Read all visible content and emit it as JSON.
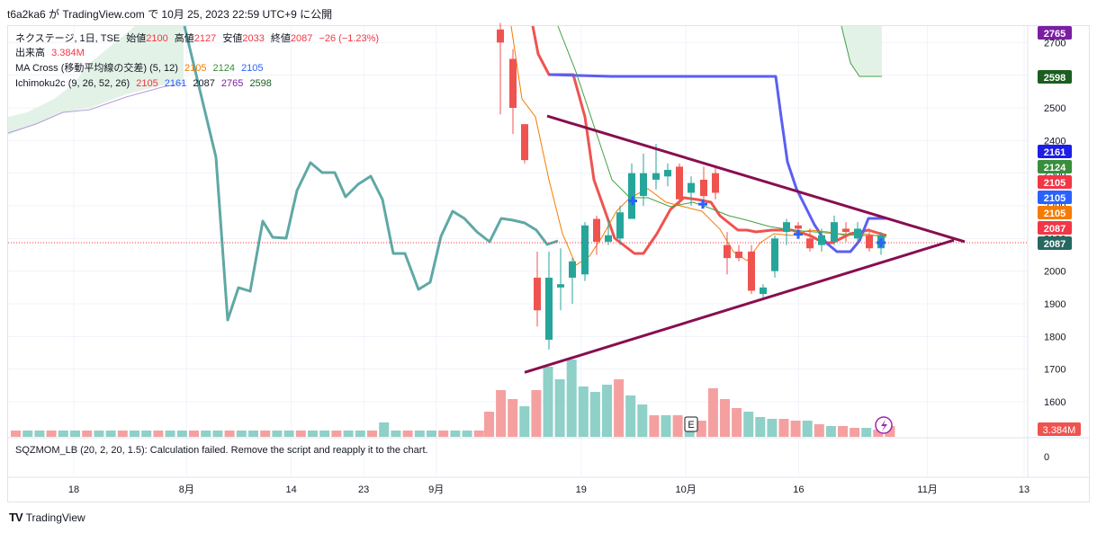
{
  "caption": "t6a2ka6 が TradingView.com で 10月 25, 2023 22:59 UTC+9 に公開",
  "legend": {
    "symbol": "ネクステージ, 1日, TSE",
    "open_label": "始値",
    "open": "2100",
    "high_label": "高値",
    "high": "2127",
    "low_label": "安値",
    "low": "2033",
    "close_label": "終値",
    "close": "2087",
    "change": "−26 (−1.23%)",
    "volume_label": "出来高",
    "volume": "3.384M",
    "ma_label": "MA Cross (移動平均線の交差) (5, 12)",
    "ma_fast": "2105",
    "ma_slow": "2124",
    "ma_third": "2105",
    "ichi_label": "Ichimoku2c (9, 26, 52, 26)",
    "ichi_v1": "2105",
    "ichi_v2": "2161",
    "ichi_v3": "2087",
    "ichi_v4": "2765",
    "ichi_v5": "2598"
  },
  "sqz": {
    "label": "SQZMOM_LB (20, 2, 20, 1.5): Calculation failed. Remove the script and reapply it to the chart.",
    "zero": "0"
  },
  "footer": {
    "logo_mark": "TV",
    "logo_text": "TradingView"
  },
  "colors": {
    "up": "#26a69a",
    "down": "#ef5350",
    "vol_up": "#8fd0c8",
    "vol_down": "#f5a0a0",
    "lagging": "#5fa8a5",
    "conversion": "#ef5350",
    "base": "#5b5ff2",
    "ma_fast": "#f57c00",
    "ma_slow": "#43a047",
    "cloud": "#e3f2e6",
    "triangle": "#880e4f"
  },
  "chart_data": {
    "type": "candlestick",
    "symbol": "ネクステージ",
    "timeframe": "1日",
    "exchange": "TSE",
    "y_ticks": [
      1600,
      1700,
      1800,
      1900,
      2000,
      2100,
      2200,
      2300,
      2400,
      2500,
      2600,
      2700
    ],
    "ylim": [
      1500,
      2730
    ],
    "x_tick_labels": [
      "18",
      "8月",
      "14",
      "23",
      "9月",
      "19",
      "10月",
      "16",
      "11月",
      "13"
    ],
    "x_tick_dates": [
      "2023-07-18",
      "2023-08-01",
      "2023-08-14",
      "2023-08-23",
      "2023-09-01",
      "2023-09-19",
      "2023-10-02",
      "2023-10-16",
      "2023-11-01",
      "2023-11-13"
    ],
    "last_close": 2087,
    "price_badges": [
      {
        "value": "2765",
        "bg": "#7b1fa2"
      },
      {
        "value": "2598",
        "bg": "#1b5e20"
      },
      {
        "value": "2161",
        "bg": "#1e1ee6"
      },
      {
        "value": "2124",
        "bg": "#388e3c"
      },
      {
        "value": "2105",
        "bg": "#f23645"
      },
      {
        "value": "2105",
        "bg": "#2962ff"
      },
      {
        "value": "2105",
        "bg": "#f57c00"
      },
      {
        "value": "2087",
        "bg": "#f23645"
      },
      {
        "value": "2087",
        "bg": "#26685f"
      }
    ],
    "volume_badge": "3.384M",
    "earnings_marker": "E",
    "candles": [
      {
        "d": "2023-09-06",
        "o": 2740,
        "h": 2760,
        "l": 2480,
        "c": 2700
      },
      {
        "d": "2023-09-07",
        "o": 2650,
        "h": 2680,
        "l": 2420,
        "c": 2500
      },
      {
        "d": "2023-09-08",
        "o": 2450,
        "h": 2450,
        "l": 2330,
        "c": 2340
      },
      {
        "d": "2023-09-11",
        "o": 1980,
        "h": 2060,
        "l": 1830,
        "c": 1880
      },
      {
        "d": "2023-09-12",
        "o": 1790,
        "h": 2060,
        "l": 1760,
        "c": 1980
      },
      {
        "d": "2023-09-13",
        "o": 1950,
        "h": 2070,
        "l": 1880,
        "c": 1960
      },
      {
        "d": "2023-09-14",
        "o": 1980,
        "h": 2040,
        "l": 1900,
        "c": 2030
      },
      {
        "d": "2023-09-15",
        "o": 1990,
        "h": 2150,
        "l": 1970,
        "c": 2140
      },
      {
        "d": "2023-09-19",
        "o": 2160,
        "h": 2170,
        "l": 2050,
        "c": 2090
      },
      {
        "d": "2023-09-20",
        "o": 2090,
        "h": 2160,
        "l": 2080,
        "c": 2110
      },
      {
        "d": "2023-09-21",
        "o": 2100,
        "h": 2200,
        "l": 2080,
        "c": 2180
      },
      {
        "d": "2023-09-22",
        "o": 2160,
        "h": 2330,
        "l": 2160,
        "c": 2300
      },
      {
        "d": "2023-09-25",
        "o": 2230,
        "h": 2360,
        "l": 2200,
        "c": 2300
      },
      {
        "d": "2023-09-26",
        "o": 2280,
        "h": 2390,
        "l": 2250,
        "c": 2300
      },
      {
        "d": "2023-09-27",
        "o": 2290,
        "h": 2330,
        "l": 2260,
        "c": 2310
      },
      {
        "d": "2023-09-28",
        "o": 2320,
        "h": 2330,
        "l": 2200,
        "c": 2220
      },
      {
        "d": "2023-09-29",
        "o": 2240,
        "h": 2290,
        "l": 2200,
        "c": 2270
      },
      {
        "d": "2023-10-02",
        "o": 2280,
        "h": 2320,
        "l": 2200,
        "c": 2230
      },
      {
        "d": "2023-10-03",
        "o": 2300,
        "h": 2320,
        "l": 2220,
        "c": 2240
      },
      {
        "d": "2023-10-04",
        "o": 2080,
        "h": 2120,
        "l": 1990,
        "c": 2040
      },
      {
        "d": "2023-10-05",
        "o": 2060,
        "h": 2080,
        "l": 2030,
        "c": 2040
      },
      {
        "d": "2023-10-06",
        "o": 2060,
        "h": 2080,
        "l": 1930,
        "c": 1940
      },
      {
        "d": "2023-10-10",
        "o": 1930,
        "h": 1960,
        "l": 1920,
        "c": 1950
      },
      {
        "d": "2023-10-11",
        "o": 2000,
        "h": 2110,
        "l": 1980,
        "c": 2100
      },
      {
        "d": "2023-10-12",
        "o": 2120,
        "h": 2160,
        "l": 2080,
        "c": 2150
      },
      {
        "d": "2023-10-13",
        "o": 2140,
        "h": 2150,
        "l": 2110,
        "c": 2130
      },
      {
        "d": "2023-10-16",
        "o": 2100,
        "h": 2130,
        "l": 2060,
        "c": 2070
      },
      {
        "d": "2023-10-17",
        "o": 2080,
        "h": 2130,
        "l": 2060,
        "c": 2110
      },
      {
        "d": "2023-10-18",
        "o": 2090,
        "h": 2170,
        "l": 2080,
        "c": 2150
      },
      {
        "d": "2023-10-19",
        "o": 2130,
        "h": 2150,
        "l": 2090,
        "c": 2120
      },
      {
        "d": "2023-10-20",
        "o": 2100,
        "h": 2150,
        "l": 2090,
        "c": 2130
      },
      {
        "d": "2023-10-23",
        "o": 2110,
        "h": 2130,
        "l": 2060,
        "c": 2070
      },
      {
        "d": "2023-10-24",
        "o": 2070,
        "h": 2120,
        "l": 2050,
        "c": 2110
      },
      {
        "d": "2023-10-25",
        "o": 2100,
        "h": 2127,
        "l": 2033,
        "c": 2087
      }
    ],
    "volume": {
      "label": "出来高",
      "values": [
        0.5,
        0.45,
        0.45,
        0.5,
        0.45,
        1.0,
        0.5,
        0.5,
        0.5,
        0.45,
        0.5,
        0.45,
        3.7,
        4.0,
        3.0,
        1.0,
        0.6,
        0.55,
        0.5,
        0.5,
        1.0,
        2.5,
        3.0,
        2.5,
        3.0,
        3.5,
        3.0,
        3.5,
        2.0,
        1.5,
        1.5,
        1.5,
        1.5,
        1.5,
        1.0,
        1.5,
        1.0,
        0.8,
        1.0,
        0.8,
        0.9,
        1.0
      ]
    }
  }
}
